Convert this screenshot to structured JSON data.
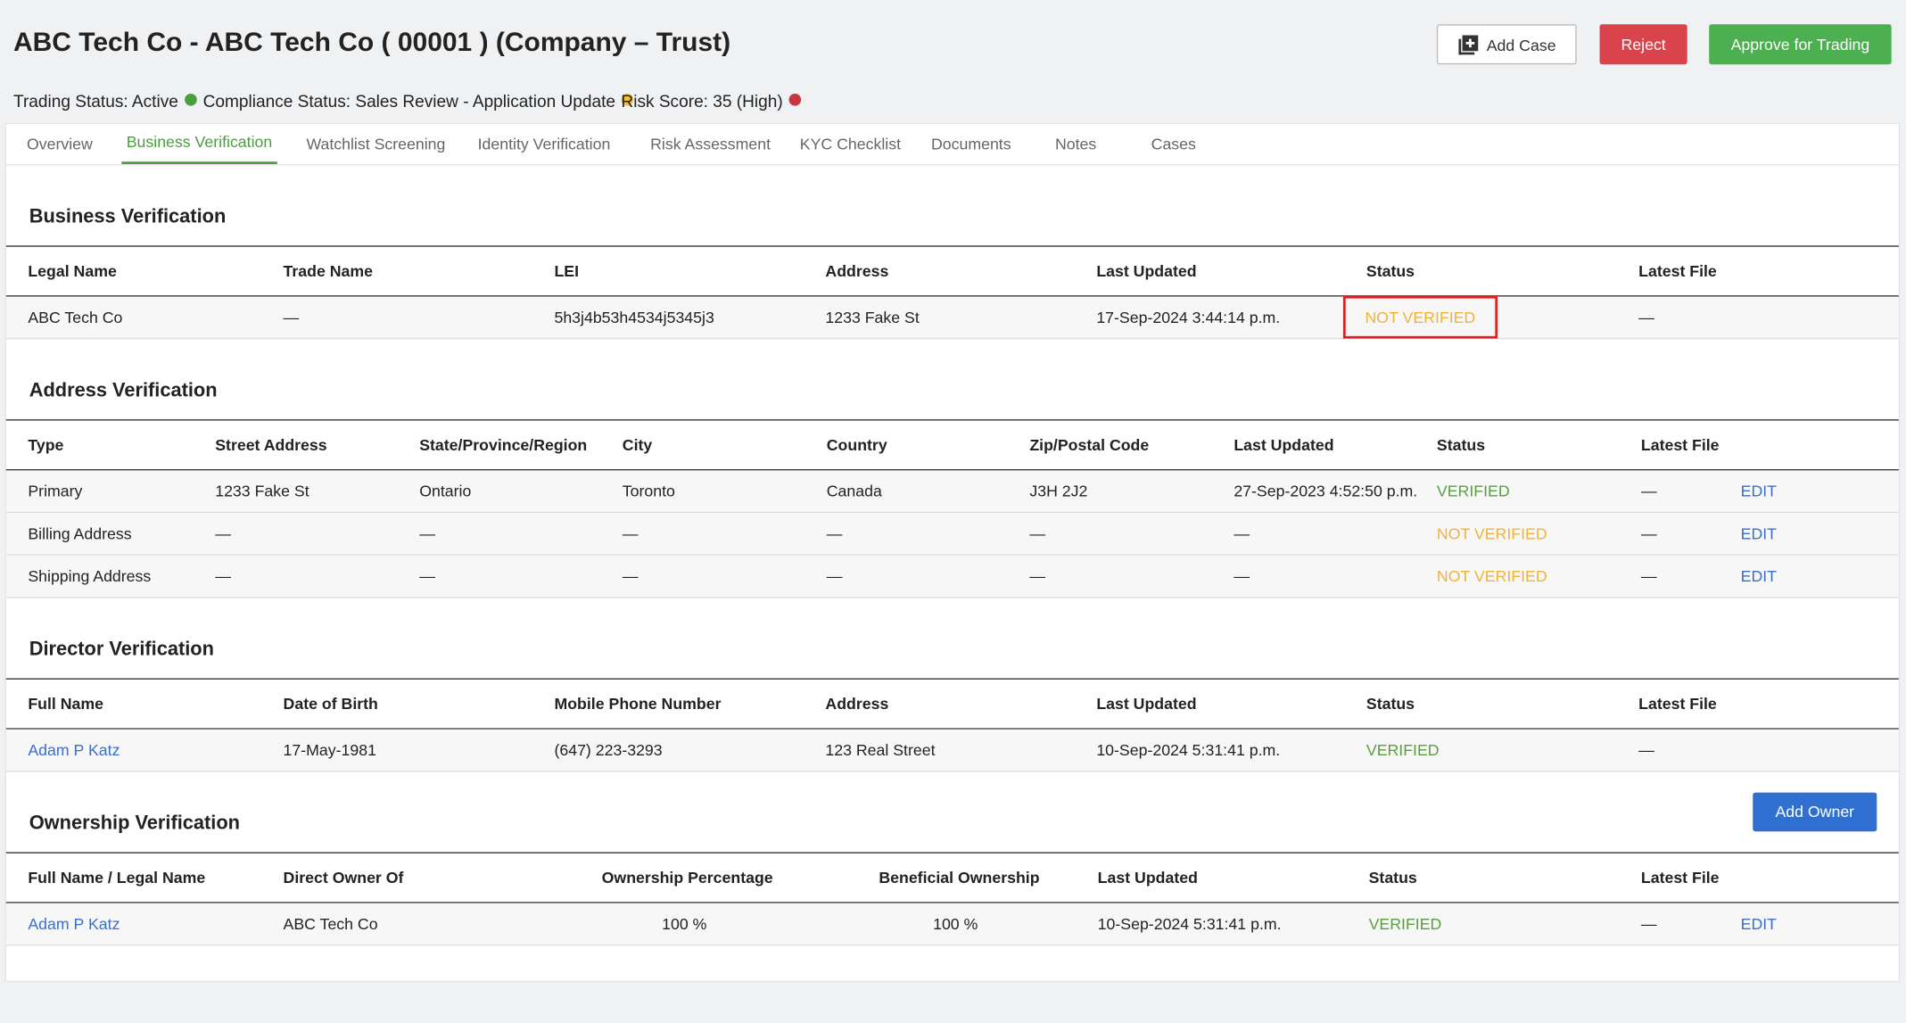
{
  "header": {
    "title": "ABC Tech Co - ABC Tech Co ( 00001 ) (Company – Trust)",
    "status": [
      {
        "text": "Trading Status: Active",
        "color": "#4a9e3f"
      },
      {
        "text": "Compliance Status: Sales Review - Application Update",
        "color": "#f2c230"
      },
      {
        "text": "Risk Score: 35 (High)",
        "color": "#c8363f"
      }
    ],
    "buttons": [
      "Add Case",
      "Reject",
      "Approve for Trading"
    ]
  },
  "tabs": [
    "Overview",
    "Business Verification",
    "Watchlist Screening",
    "Identity Verification",
    "Risk Assessment",
    "KYC Checklist",
    "Documents",
    "Notes",
    "Cases"
  ],
  "sections": [
    {
      "title": "Business Verification",
      "columns": [
        "Legal Name",
        "Trade Name",
        "LEI",
        "Address",
        "Last Updated",
        "Status",
        "Latest File"
      ],
      "rows": [
        [
          "ABC Tech Co",
          "—",
          "5h3j4b53h4534j5345j3",
          "1233 Fake St",
          "17-Sep-2024 3:44:14 p.m.",
          "NOT VERIFIED",
          "—"
        ]
      ],
      "status_colors": [
        "#f0b33a"
      ]
    },
    {
      "title": "Address Verification",
      "columns": [
        "Type",
        "Street Address",
        "State/Province/Region",
        "City",
        "Country",
        "Zip/Postal Code",
        "Last Updated",
        "Status",
        "Latest File"
      ],
      "rows": [
        [
          "Primary",
          "1233 Fake St",
          "Ontario",
          "Toronto",
          "Canada",
          "J3H 2J2",
          "27-Sep-2023 4:52:50 p.m.",
          "VERIFIED",
          "—",
          "EDIT"
        ],
        [
          "Billing Address",
          "—",
          "—",
          "—",
          "—",
          "—",
          "—",
          "NOT VERIFIED",
          "—",
          "EDIT"
        ],
        [
          "Shipping Address",
          "—",
          "—",
          "—",
          "—",
          "—",
          "—",
          "NOT VERIFIED",
          "—",
          "EDIT"
        ]
      ],
      "status_colors": [
        "#5a9e3f",
        "#f0b33a",
        "#f0b33a"
      ]
    },
    {
      "title": "Director Verification",
      "columns": [
        "Full Name",
        "Date of Birth",
        "Mobile Phone Number",
        "Address",
        "Last Updated",
        "Status",
        "Latest File"
      ],
      "rows": [
        [
          "Adam P Katz",
          "17-May-1981",
          "(647) 223-3293",
          "123 Real Street",
          "10-Sep-2024 5:31:41 p.m.",
          "VERIFIED",
          "—"
        ]
      ],
      "status_colors": [
        "#5a9e3f"
      ]
    },
    {
      "title": "Ownership Verification",
      "button": "Add Owner",
      "columns": [
        "Full Name / Legal Name",
        "Direct Owner Of",
        "Ownership Percentage",
        "Beneficial Ownership",
        "Last Updated",
        "Status",
        "Latest File"
      ],
      "rows": [
        [
          "Adam P Katz",
          "ABC Tech Co",
          "100 %",
          "100 %",
          "10-Sep-2024 5:31:41 p.m.",
          "VERIFIED",
          "—",
          "EDIT"
        ]
      ],
      "status_colors": [
        "#5a9e3f"
      ]
    }
  ]
}
